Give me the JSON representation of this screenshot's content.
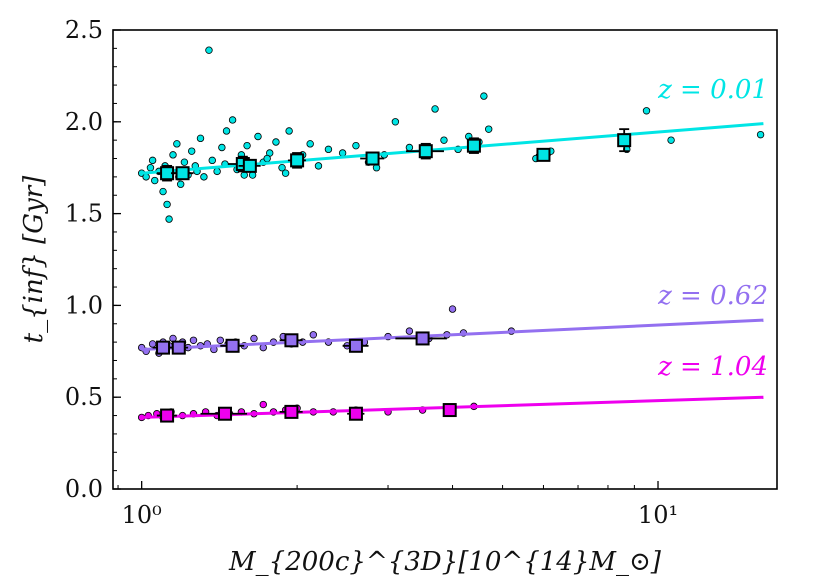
{
  "chart_data": {
    "type": "scatter",
    "title": "",
    "xlabel": "M_{200c}^{3D}[10^{14}M_⊙]",
    "ylabel": "t_{inf} [Gyr]",
    "xscale": "log",
    "xlim": [
      0.88,
      17.0
    ],
    "ylim": [
      0.0,
      2.5
    ],
    "xticks": [
      {
        "value": 1,
        "label": "10⁰"
      },
      {
        "value": 10,
        "label": "10¹"
      }
    ],
    "yticks": [
      {
        "value": 0.0,
        "label": "0.0"
      },
      {
        "value": 0.5,
        "label": "0.5"
      },
      {
        "value": 1.0,
        "label": "1.0"
      },
      {
        "value": 1.5,
        "label": "1.5"
      },
      {
        "value": 2.0,
        "label": "2.0"
      },
      {
        "value": 2.5,
        "label": "2.5"
      }
    ],
    "grid": false,
    "legend": "none",
    "series": [
      {
        "name": "z = 0.01",
        "color": "#00e5e5",
        "fit": {
          "x": [
            1.0,
            16.0
          ],
          "y": [
            1.72,
            1.99
          ]
        },
        "points": [
          {
            "x": 1.0,
            "y": 1.72
          },
          {
            "x": 1.02,
            "y": 1.7
          },
          {
            "x": 1.04,
            "y": 1.75
          },
          {
            "x": 1.06,
            "y": 1.68
          },
          {
            "x": 1.08,
            "y": 1.73
          },
          {
            "x": 1.1,
            "y": 1.62
          },
          {
            "x": 1.12,
            "y": 1.55
          },
          {
            "x": 1.13,
            "y": 1.47
          },
          {
            "x": 1.15,
            "y": 1.82
          },
          {
            "x": 1.17,
            "y": 1.88
          },
          {
            "x": 1.19,
            "y": 1.66
          },
          {
            "x": 1.21,
            "y": 1.78
          },
          {
            "x": 1.23,
            "y": 1.71
          },
          {
            "x": 1.25,
            "y": 1.84
          },
          {
            "x": 1.27,
            "y": 1.76
          },
          {
            "x": 1.3,
            "y": 1.91
          },
          {
            "x": 1.32,
            "y": 1.7
          },
          {
            "x": 1.35,
            "y": 2.39
          },
          {
            "x": 1.37,
            "y": 1.79
          },
          {
            "x": 1.4,
            "y": 1.73
          },
          {
            "x": 1.43,
            "y": 1.86
          },
          {
            "x": 1.46,
            "y": 1.95
          },
          {
            "x": 1.5,
            "y": 2.01
          },
          {
            "x": 1.53,
            "y": 1.74
          },
          {
            "x": 1.56,
            "y": 1.82
          },
          {
            "x": 1.6,
            "y": 1.87
          },
          {
            "x": 1.64,
            "y": 1.71
          },
          {
            "x": 1.68,
            "y": 1.92
          },
          {
            "x": 1.72,
            "y": 1.78
          },
          {
            "x": 1.77,
            "y": 1.83
          },
          {
            "x": 1.82,
            "y": 1.89
          },
          {
            "x": 1.87,
            "y": 1.75
          },
          {
            "x": 1.93,
            "y": 1.95
          },
          {
            "x": 1.99,
            "y": 1.77
          },
          {
            "x": 2.05,
            "y": 1.82
          },
          {
            "x": 2.12,
            "y": 1.88
          },
          {
            "x": 2.2,
            "y": 1.76
          },
          {
            "x": 2.3,
            "y": 1.85
          },
          {
            "x": 2.45,
            "y": 1.83
          },
          {
            "x": 2.6,
            "y": 1.87
          },
          {
            "x": 2.75,
            "y": 1.78
          },
          {
            "x": 2.85,
            "y": 1.75
          },
          {
            "x": 2.95,
            "y": 1.82
          },
          {
            "x": 3.1,
            "y": 2.0
          },
          {
            "x": 3.3,
            "y": 1.86
          },
          {
            "x": 3.6,
            "y": 1.84
          },
          {
            "x": 3.7,
            "y": 2.07
          },
          {
            "x": 3.85,
            "y": 1.9
          },
          {
            "x": 4.1,
            "y": 1.85
          },
          {
            "x": 4.3,
            "y": 1.92
          },
          {
            "x": 4.5,
            "y": 1.89
          },
          {
            "x": 4.6,
            "y": 2.14
          },
          {
            "x": 4.7,
            "y": 1.96
          },
          {
            "x": 5.8,
            "y": 1.8
          },
          {
            "x": 6.0,
            "y": 1.82
          },
          {
            "x": 6.2,
            "y": 1.84
          },
          {
            "x": 8.7,
            "y": 1.85
          },
          {
            "x": 9.5,
            "y": 2.06
          },
          {
            "x": 10.6,
            "y": 1.9
          },
          {
            "x": 15.8,
            "y": 1.93
          },
          {
            "x": 1.05,
            "y": 1.79
          },
          {
            "x": 1.11,
            "y": 1.76
          },
          {
            "x": 1.18,
            "y": 1.7
          },
          {
            "x": 1.28,
            "y": 1.73
          },
          {
            "x": 1.45,
            "y": 1.77
          },
          {
            "x": 1.58,
            "y": 1.71
          },
          {
            "x": 1.75,
            "y": 1.8
          },
          {
            "x": 1.9,
            "y": 1.72
          }
        ],
        "binned": [
          {
            "x": 1.12,
            "y": 1.72,
            "yerr": 0.04,
            "xerr": 0.05
          },
          {
            "x": 1.2,
            "y": 1.72,
            "yerr": 0.03,
            "xerr": 0.06
          },
          {
            "x": 1.57,
            "y": 1.77,
            "yerr": 0.04,
            "xerr": 0.1
          },
          {
            "x": 1.62,
            "y": 1.76,
            "yerr": 0.03,
            "xerr": 0.08
          },
          {
            "x": 2.0,
            "y": 1.79,
            "yerr": 0.04,
            "xerr": 0.08
          },
          {
            "x": 2.8,
            "y": 1.8,
            "yerr": 0.03,
            "xerr": 0.15
          },
          {
            "x": 3.55,
            "y": 1.84,
            "yerr": 0.04,
            "xerr": 0.3
          },
          {
            "x": 4.4,
            "y": 1.87,
            "yerr": 0.04,
            "xerr": 0.1
          },
          {
            "x": 6.0,
            "y": 1.82,
            "yerr": 0.03,
            "xerr": 0.2
          },
          {
            "x": 8.6,
            "y": 1.9,
            "yerr": 0.06,
            "xerr": 0.25
          }
        ]
      },
      {
        "name": "z = 0.62",
        "color": "#9370f0",
        "fit": {
          "x": [
            1.0,
            16.0
          ],
          "y": [
            0.76,
            0.92
          ]
        },
        "points": [
          {
            "x": 1.0,
            "y": 0.77
          },
          {
            "x": 1.02,
            "y": 0.75
          },
          {
            "x": 1.05,
            "y": 0.79
          },
          {
            "x": 1.08,
            "y": 0.74
          },
          {
            "x": 1.1,
            "y": 0.8
          },
          {
            "x": 1.13,
            "y": 0.78
          },
          {
            "x": 1.15,
            "y": 0.82
          },
          {
            "x": 1.18,
            "y": 0.76
          },
          {
            "x": 1.2,
            "y": 0.8
          },
          {
            "x": 1.23,
            "y": 0.77
          },
          {
            "x": 1.26,
            "y": 0.81
          },
          {
            "x": 1.3,
            "y": 0.78
          },
          {
            "x": 1.34,
            "y": 0.79
          },
          {
            "x": 1.38,
            "y": 0.76
          },
          {
            "x": 1.42,
            "y": 0.81
          },
          {
            "x": 1.47,
            "y": 0.79
          },
          {
            "x": 1.52,
            "y": 0.8
          },
          {
            "x": 1.58,
            "y": 0.78
          },
          {
            "x": 1.65,
            "y": 0.82
          },
          {
            "x": 1.72,
            "y": 0.77
          },
          {
            "x": 1.8,
            "y": 0.8
          },
          {
            "x": 1.88,
            "y": 0.83
          },
          {
            "x": 1.95,
            "y": 0.79
          },
          {
            "x": 2.05,
            "y": 0.8
          },
          {
            "x": 2.15,
            "y": 0.84
          },
          {
            "x": 2.3,
            "y": 0.8
          },
          {
            "x": 2.5,
            "y": 0.78
          },
          {
            "x": 2.7,
            "y": 0.8
          },
          {
            "x": 3.0,
            "y": 0.83
          },
          {
            "x": 3.3,
            "y": 0.86
          },
          {
            "x": 3.6,
            "y": 0.82
          },
          {
            "x": 3.9,
            "y": 0.84
          },
          {
            "x": 4.0,
            "y": 0.98
          },
          {
            "x": 4.2,
            "y": 0.85
          },
          {
            "x": 5.2,
            "y": 0.86
          }
        ],
        "binned": [
          {
            "x": 1.1,
            "y": 0.77,
            "yerr": 0.02,
            "xerr": 0.05
          },
          {
            "x": 1.18,
            "y": 0.77,
            "yerr": 0.02,
            "xerr": 0.05
          },
          {
            "x": 1.5,
            "y": 0.78,
            "yerr": 0.02,
            "xerr": 0.08
          },
          {
            "x": 1.95,
            "y": 0.81,
            "yerr": 0.02,
            "xerr": 0.1
          },
          {
            "x": 2.6,
            "y": 0.78,
            "yerr": 0.02,
            "xerr": 0.15
          },
          {
            "x": 3.5,
            "y": 0.82,
            "yerr": 0.03,
            "xerr": 0.4
          }
        ]
      },
      {
        "name": "z = 1.04",
        "color": "#ee00ee",
        "fit": {
          "x": [
            1.0,
            16.0
          ],
          "y": [
            0.39,
            0.5
          ]
        },
        "points": [
          {
            "x": 1.0,
            "y": 0.39
          },
          {
            "x": 1.03,
            "y": 0.4
          },
          {
            "x": 1.07,
            "y": 0.41
          },
          {
            "x": 1.1,
            "y": 0.39
          },
          {
            "x": 1.14,
            "y": 0.42
          },
          {
            "x": 1.2,
            "y": 0.4
          },
          {
            "x": 1.26,
            "y": 0.41
          },
          {
            "x": 1.33,
            "y": 0.42
          },
          {
            "x": 1.4,
            "y": 0.4
          },
          {
            "x": 1.48,
            "y": 0.41
          },
          {
            "x": 1.56,
            "y": 0.42
          },
          {
            "x": 1.65,
            "y": 0.41
          },
          {
            "x": 1.72,
            "y": 0.46
          },
          {
            "x": 1.8,
            "y": 0.42
          },
          {
            "x": 1.9,
            "y": 0.43
          },
          {
            "x": 2.0,
            "y": 0.44
          },
          {
            "x": 2.15,
            "y": 0.42
          },
          {
            "x": 2.35,
            "y": 0.42
          },
          {
            "x": 2.6,
            "y": 0.43
          },
          {
            "x": 3.0,
            "y": 0.42
          },
          {
            "x": 3.5,
            "y": 0.43
          },
          {
            "x": 4.0,
            "y": 0.44
          },
          {
            "x": 4.4,
            "y": 0.45
          }
        ],
        "binned": [
          {
            "x": 1.12,
            "y": 0.4,
            "yerr": 0.02,
            "xerr": 0.05
          },
          {
            "x": 1.45,
            "y": 0.41,
            "yerr": 0.02,
            "xerr": 0.15
          },
          {
            "x": 1.95,
            "y": 0.42,
            "yerr": 0.02,
            "xerr": 0.1
          },
          {
            "x": 2.6,
            "y": 0.41,
            "yerr": 0.02,
            "xerr": 0.1
          },
          {
            "x": 3.95,
            "y": 0.43,
            "yerr": 0.03,
            "xerr": 0.1
          }
        ]
      }
    ]
  }
}
